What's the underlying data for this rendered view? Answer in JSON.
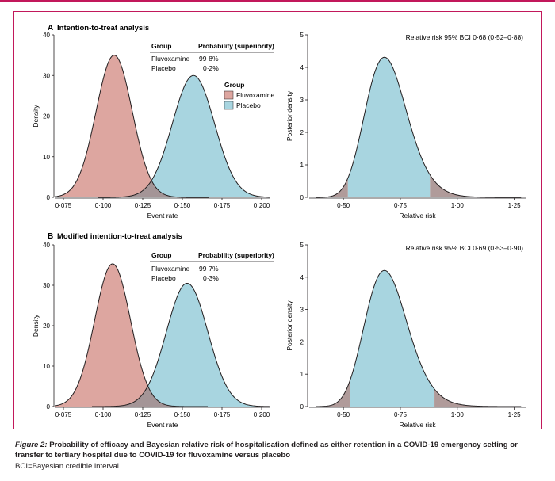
{
  "colors": {
    "fluvoxamine": "#dda6a0",
    "placebo": "#a8d5e0",
    "overlap": "#a49597",
    "tail": "#b09b9a",
    "frame": "#c2185b",
    "axis": "#231f20"
  },
  "caption": {
    "label": "Figure 2:",
    "title": "Probability of efficacy and Bayesian relative risk of hospitalisation defined as either retention in a COVID-19 emergency setting or transfer to tertiary hospital due to COVID-19 for fluvoxamine versus placebo",
    "note": "BCI=Bayesian credible interval."
  },
  "panels": [
    {
      "letter": "A",
      "title": "Intention-to-treat analysis",
      "table": {
        "col1": "Group",
        "col2": "Probability (superiority)",
        "rows": [
          {
            "group": "Fluvoxamine",
            "prob": "99·8%"
          },
          {
            "group": "Placebo",
            "prob": "0·2%"
          }
        ]
      },
      "legend": {
        "title": "Group",
        "items": [
          "Fluvoxamine",
          "Placebo"
        ]
      },
      "rr_label": "Relative risk 95% BCI 0·68 (0·52–0·88)"
    },
    {
      "letter": "B",
      "title": "Modified intention-to-treat analysis",
      "table": {
        "col1": "Group",
        "col2": "Probability (superiority)",
        "rows": [
          {
            "group": "Fluvoxamine",
            "prob": "99·7%"
          },
          {
            "group": "Placebo",
            "prob": "0·3%"
          }
        ]
      },
      "rr_label": "Relative risk 95% BCI 0·69 (0·53–0·90)"
    }
  ],
  "chart_data": [
    {
      "type": "area",
      "id": "A-event",
      "xlabel": "Event rate",
      "ylabel": "Density",
      "xlim": [
        0.07,
        0.205
      ],
      "ylim": [
        0,
        40
      ],
      "xticks": [
        0.075,
        0.1,
        0.125,
        0.15,
        0.175,
        0.2
      ],
      "xtick_labels": [
        "0·075",
        "0·100",
        "0·125",
        "0·150",
        "0·175",
        "0·200"
      ],
      "yticks": [
        0,
        10,
        20,
        30,
        40
      ],
      "ytick_labels": [
        "0",
        "10",
        "20",
        "30",
        "40"
      ],
      "series": [
        {
          "name": "Fluvoxamine",
          "distribution": "normal",
          "mean": 0.107,
          "peak": 35.0
        },
        {
          "name": "Placebo",
          "distribution": "normal",
          "mean": 0.157,
          "peak": 30.0
        }
      ]
    },
    {
      "type": "area",
      "id": "A-rr",
      "xlabel": "Relative risk",
      "ylabel": "Posterior density",
      "xlim": [
        0.35,
        1.3
      ],
      "ylim": [
        0,
        5
      ],
      "xticks": [
        0.5,
        0.75,
        1.0,
        1.25
      ],
      "xtick_labels": [
        "0·50",
        "0·75",
        "1·00",
        "1·25"
      ],
      "yticks": [
        0,
        1,
        2,
        3,
        4,
        5
      ],
      "ytick_labels": [
        "0",
        "1",
        "2",
        "3",
        "4",
        "5"
      ],
      "series": [
        {
          "name": "Posterior",
          "distribution": "skewed",
          "mode": 0.68,
          "peak": 4.35,
          "bci_low": 0.52,
          "bci_high": 0.88
        }
      ]
    },
    {
      "type": "area",
      "id": "B-event",
      "xlabel": "Event rate",
      "ylabel": "Density",
      "xlim": [
        0.07,
        0.205
      ],
      "ylim": [
        0,
        40
      ],
      "xticks": [
        0.075,
        0.1,
        0.125,
        0.15,
        0.175,
        0.2
      ],
      "xtick_labels": [
        "0·075",
        "0·100",
        "0·125",
        "0·150",
        "0·175",
        "0·200"
      ],
      "yticks": [
        0,
        10,
        20,
        30,
        40
      ],
      "ytick_labels": [
        "0",
        "10",
        "20",
        "30",
        "40"
      ],
      "series": [
        {
          "name": "Fluvoxamine",
          "distribution": "normal",
          "mean": 0.106,
          "peak": 35.3
        },
        {
          "name": "Placebo",
          "distribution": "normal",
          "mean": 0.153,
          "peak": 30.5
        }
      ]
    },
    {
      "type": "area",
      "id": "B-rr",
      "xlabel": "Relative risk",
      "ylabel": "Posterior density",
      "xlim": [
        0.35,
        1.3
      ],
      "ylim": [
        0,
        5
      ],
      "xticks": [
        0.5,
        0.75,
        1.0,
        1.25
      ],
      "xtick_labels": [
        "0·50",
        "0·75",
        "1·00",
        "1·25"
      ],
      "yticks": [
        0,
        1,
        2,
        3,
        4,
        5
      ],
      "ytick_labels": [
        "0",
        "1",
        "2",
        "3",
        "4",
        "5"
      ],
      "series": [
        {
          "name": "Posterior",
          "distribution": "skewed",
          "mode": 0.68,
          "peak": 4.25,
          "bci_low": 0.53,
          "bci_high": 0.9
        }
      ]
    }
  ]
}
